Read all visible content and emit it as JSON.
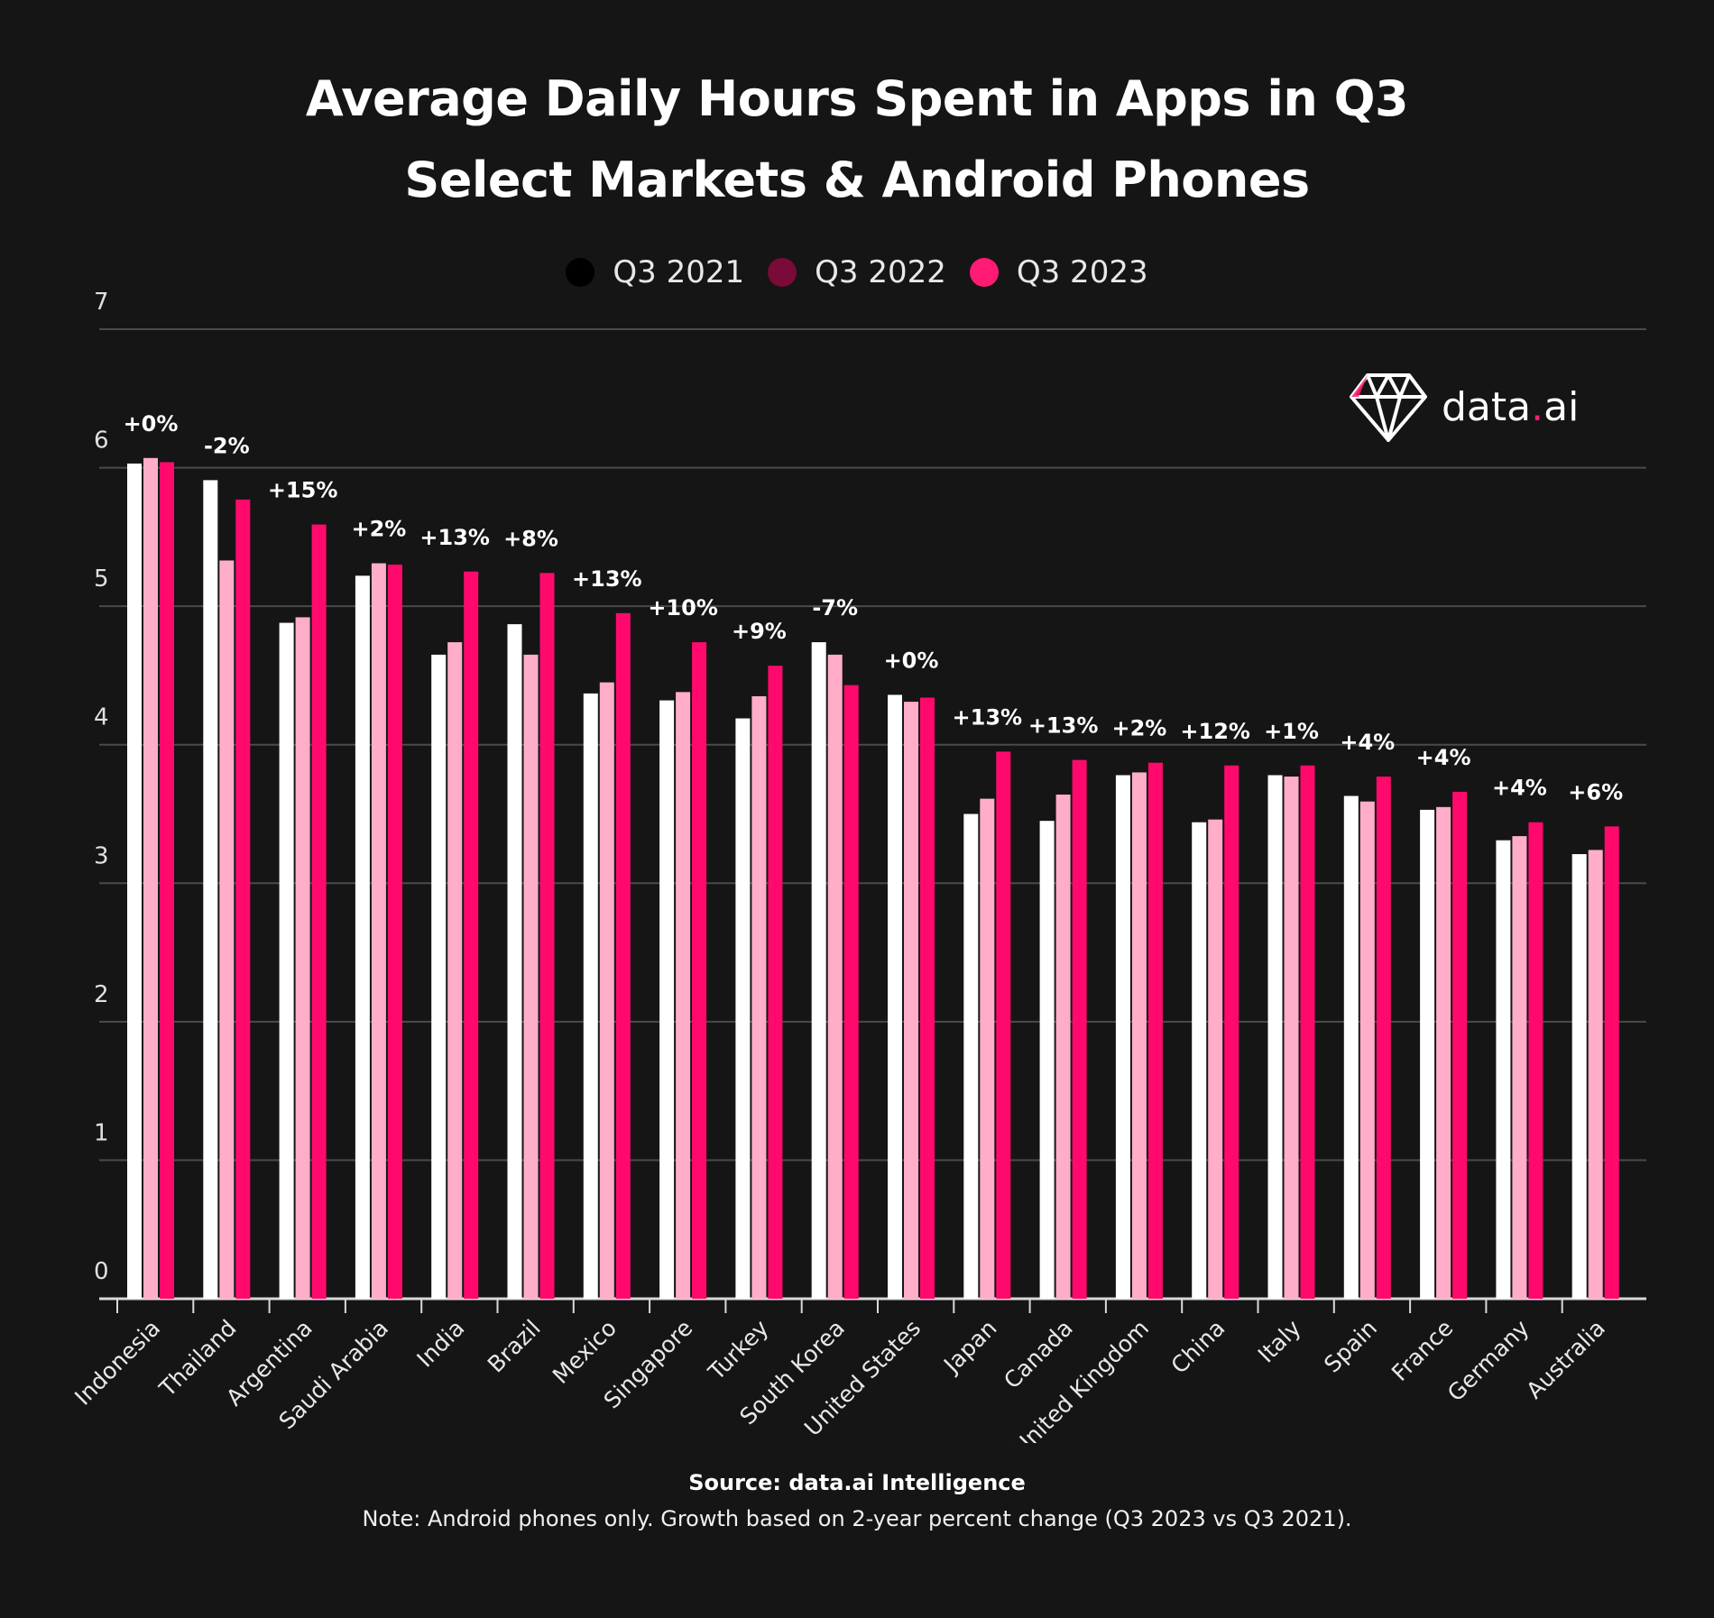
{
  "title_line1": "Average Daily Hours Spent in Apps in Q3",
  "title_line2": "Select Markets & Android Phones",
  "legend": [
    {
      "label": "Q3 2021",
      "color": "#000000"
    },
    {
      "label": "Q3 2022",
      "color": "#7a0a38"
    },
    {
      "label": "Q3 2023",
      "color": "#ff1b74"
    }
  ],
  "logo": {
    "text_main": "data",
    "text_dot": ".",
    "text_tail": "ai",
    "icon": "diamond-icon"
  },
  "source": "Source: data.ai Intelligence",
  "note": "Note: Android phones only. Growth based on 2-year percent change (Q3 2023 vs Q3 2021).",
  "colors": {
    "bar_2021": "#ffffff",
    "bar_2022": "#ffadc8",
    "bar_2023": "#ff0a6c",
    "grid": "#4a4a4a",
    "axis": "#d9d9d9"
  },
  "chart_data": {
    "type": "bar",
    "title": "Average Daily Hours Spent in Apps in Q3 — Select Markets & Android Phones",
    "xlabel": "",
    "ylabel": "",
    "ylim": [
      0,
      7
    ],
    "yticks": [
      "0",
      "1",
      "2",
      "3",
      "4",
      "5",
      "6",
      "7"
    ],
    "grid": true,
    "legend_position": "top-center",
    "categories": [
      "Indonesia",
      "Thailand",
      "Argentina",
      "Saudi Arabia",
      "India",
      "Brazil",
      "Mexico",
      "Singapore",
      "Turkey",
      "South Korea",
      "United States",
      "Japan",
      "Canada",
      "United Kingdom",
      "China",
      "Italy",
      "Spain",
      "France",
      "Germany",
      "Australia"
    ],
    "series": [
      {
        "name": "Q3 2021",
        "values": [
          6.03,
          5.91,
          4.88,
          5.22,
          4.65,
          4.87,
          4.37,
          4.32,
          4.19,
          4.74,
          4.36,
          3.5,
          3.45,
          3.78,
          3.44,
          3.78,
          3.63,
          3.53,
          3.31,
          3.21
        ]
      },
      {
        "name": "Q3 2022",
        "values": [
          6.07,
          5.33,
          4.92,
          5.31,
          4.74,
          4.65,
          4.45,
          4.38,
          4.35,
          4.65,
          4.31,
          3.61,
          3.64,
          3.8,
          3.46,
          3.77,
          3.59,
          3.55,
          3.34,
          3.24
        ]
      },
      {
        "name": "Q3 2023",
        "values": [
          6.04,
          5.77,
          5.59,
          5.3,
          5.25,
          5.24,
          4.95,
          4.74,
          4.57,
          4.43,
          4.34,
          3.95,
          3.89,
          3.87,
          3.85,
          3.85,
          3.77,
          3.66,
          3.44,
          3.41
        ]
      }
    ],
    "annotations": [
      "+0%",
      "-2%",
      "+15%",
      "+2%",
      "+13%",
      "+8%",
      "+13%",
      "+10%",
      "+9%",
      "-7%",
      "+0%",
      "+13%",
      "+13%",
      "+2%",
      "+12%",
      "+1%",
      "+4%",
      "+4%",
      "+4%",
      "+6%"
    ]
  }
}
